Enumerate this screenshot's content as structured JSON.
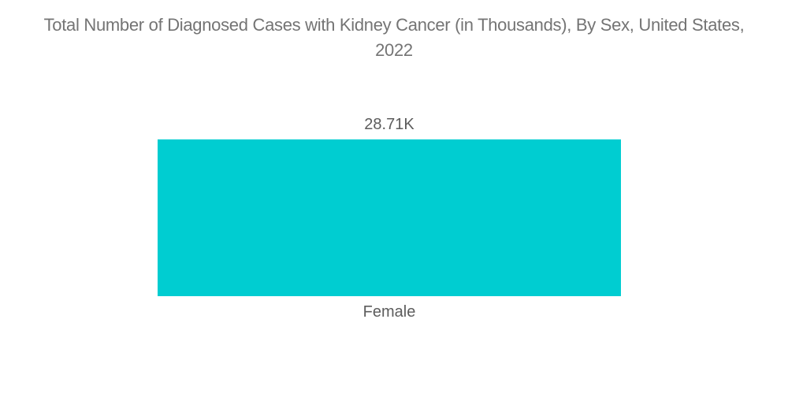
{
  "chart": {
    "title_line1": "Total Number of Diagnosed Cases with Kidney Cancer (in Thousands), By Sex, United States,",
    "title_line2": "2022",
    "value_label": "28.71K",
    "category_label": "Female",
    "bar_color": "#00CDD1",
    "title_color": "#747474",
    "label_color": "#5C5C5C",
    "background_color": "#FFFFFF"
  },
  "chart_data": {
    "type": "bar",
    "orientation": "vertical",
    "title": "Total Number of Diagnosed Cases with Kidney Cancer (in Thousands), By Sex, United States, 2022",
    "categories": [
      "Female"
    ],
    "values": [
      28.71
    ],
    "value_labels": [
      "28.71K"
    ],
    "unit": "Thousands",
    "xlabel": "",
    "ylabel": "",
    "grid": false,
    "legend_position": "none",
    "axes_visible": false,
    "bar_color": "#00CDD1"
  }
}
